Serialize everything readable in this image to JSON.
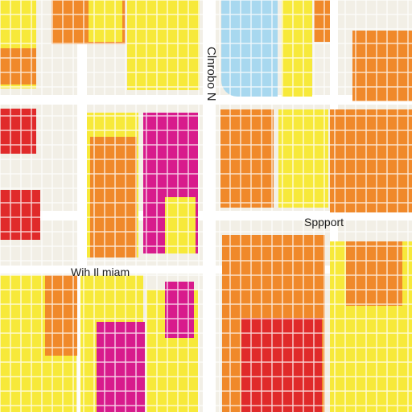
{
  "map": {
    "labels": {
      "north": "Clnrobo N",
      "support": "Sppport",
      "wih": "Wih Il miam"
    },
    "colors": {
      "background": "#f2efe6",
      "road": "#ffffff",
      "water": "#a8d8ef",
      "yellow": "#f7e93a",
      "orange": "#f0892a",
      "red": "#e02a2a",
      "magenta": "#d81b8c",
      "pale": "#faf5c9"
    }
  }
}
